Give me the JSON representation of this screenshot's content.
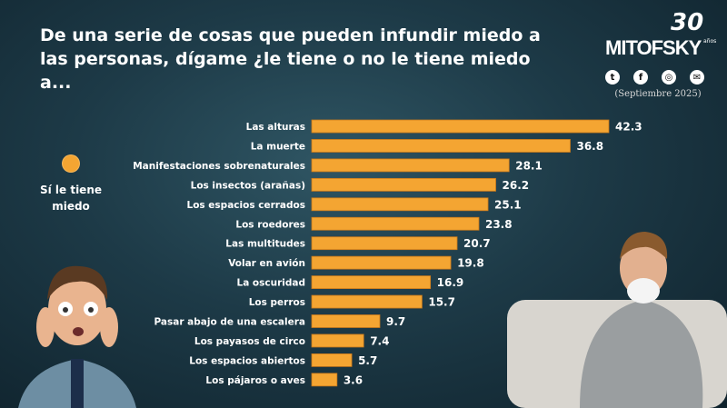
{
  "header": {
    "title": "De una serie de cosas que pueden infundir miedo a las personas, dígame ¿le tiene o no le tiene miedo a...",
    "logo": {
      "brand": "MITOFSKY",
      "anniversary": "30",
      "anniversary_sub": "años"
    },
    "social_icons": [
      "twitter-icon",
      "facebook-icon",
      "web-icon",
      "mail-icon"
    ],
    "date": "(Septiembre 2025)"
  },
  "legend": {
    "label": "Sí le tiene miedo",
    "color": "#f4a532"
  },
  "chart_data": {
    "type": "bar",
    "orientation": "horizontal",
    "title": "",
    "categories": [
      "Las alturas",
      "La muerte",
      "Manifestaciones sobrenaturales",
      "Los insectos (arañas)",
      "Los espacios cerrados",
      "Los roedores",
      "Las multitudes",
      "Volar en avión",
      "La oscuridad",
      "Los perros",
      "Pasar abajo de una escalera",
      "Los payasos de circo",
      "Los espacios abiertos",
      "Los pájaros o aves"
    ],
    "series": [
      {
        "name": "Sí le tiene miedo",
        "values": [
          42.3,
          36.8,
          28.1,
          26.2,
          25.1,
          23.8,
          20.7,
          19.8,
          16.9,
          15.7,
          9.7,
          7.4,
          5.7,
          3.6
        ]
      }
    ],
    "value_labels": [
      "42.3",
      "36.8",
      "28.1",
      "26.2",
      "25.1",
      "23.8",
      "20.7",
      "19.8",
      "16.9",
      "15.7",
      "9.7",
      "7.4",
      "5.7",
      "3.6"
    ],
    "bar_color": "#f4a532",
    "xlim": [
      0,
      42.3
    ],
    "grid": false
  }
}
